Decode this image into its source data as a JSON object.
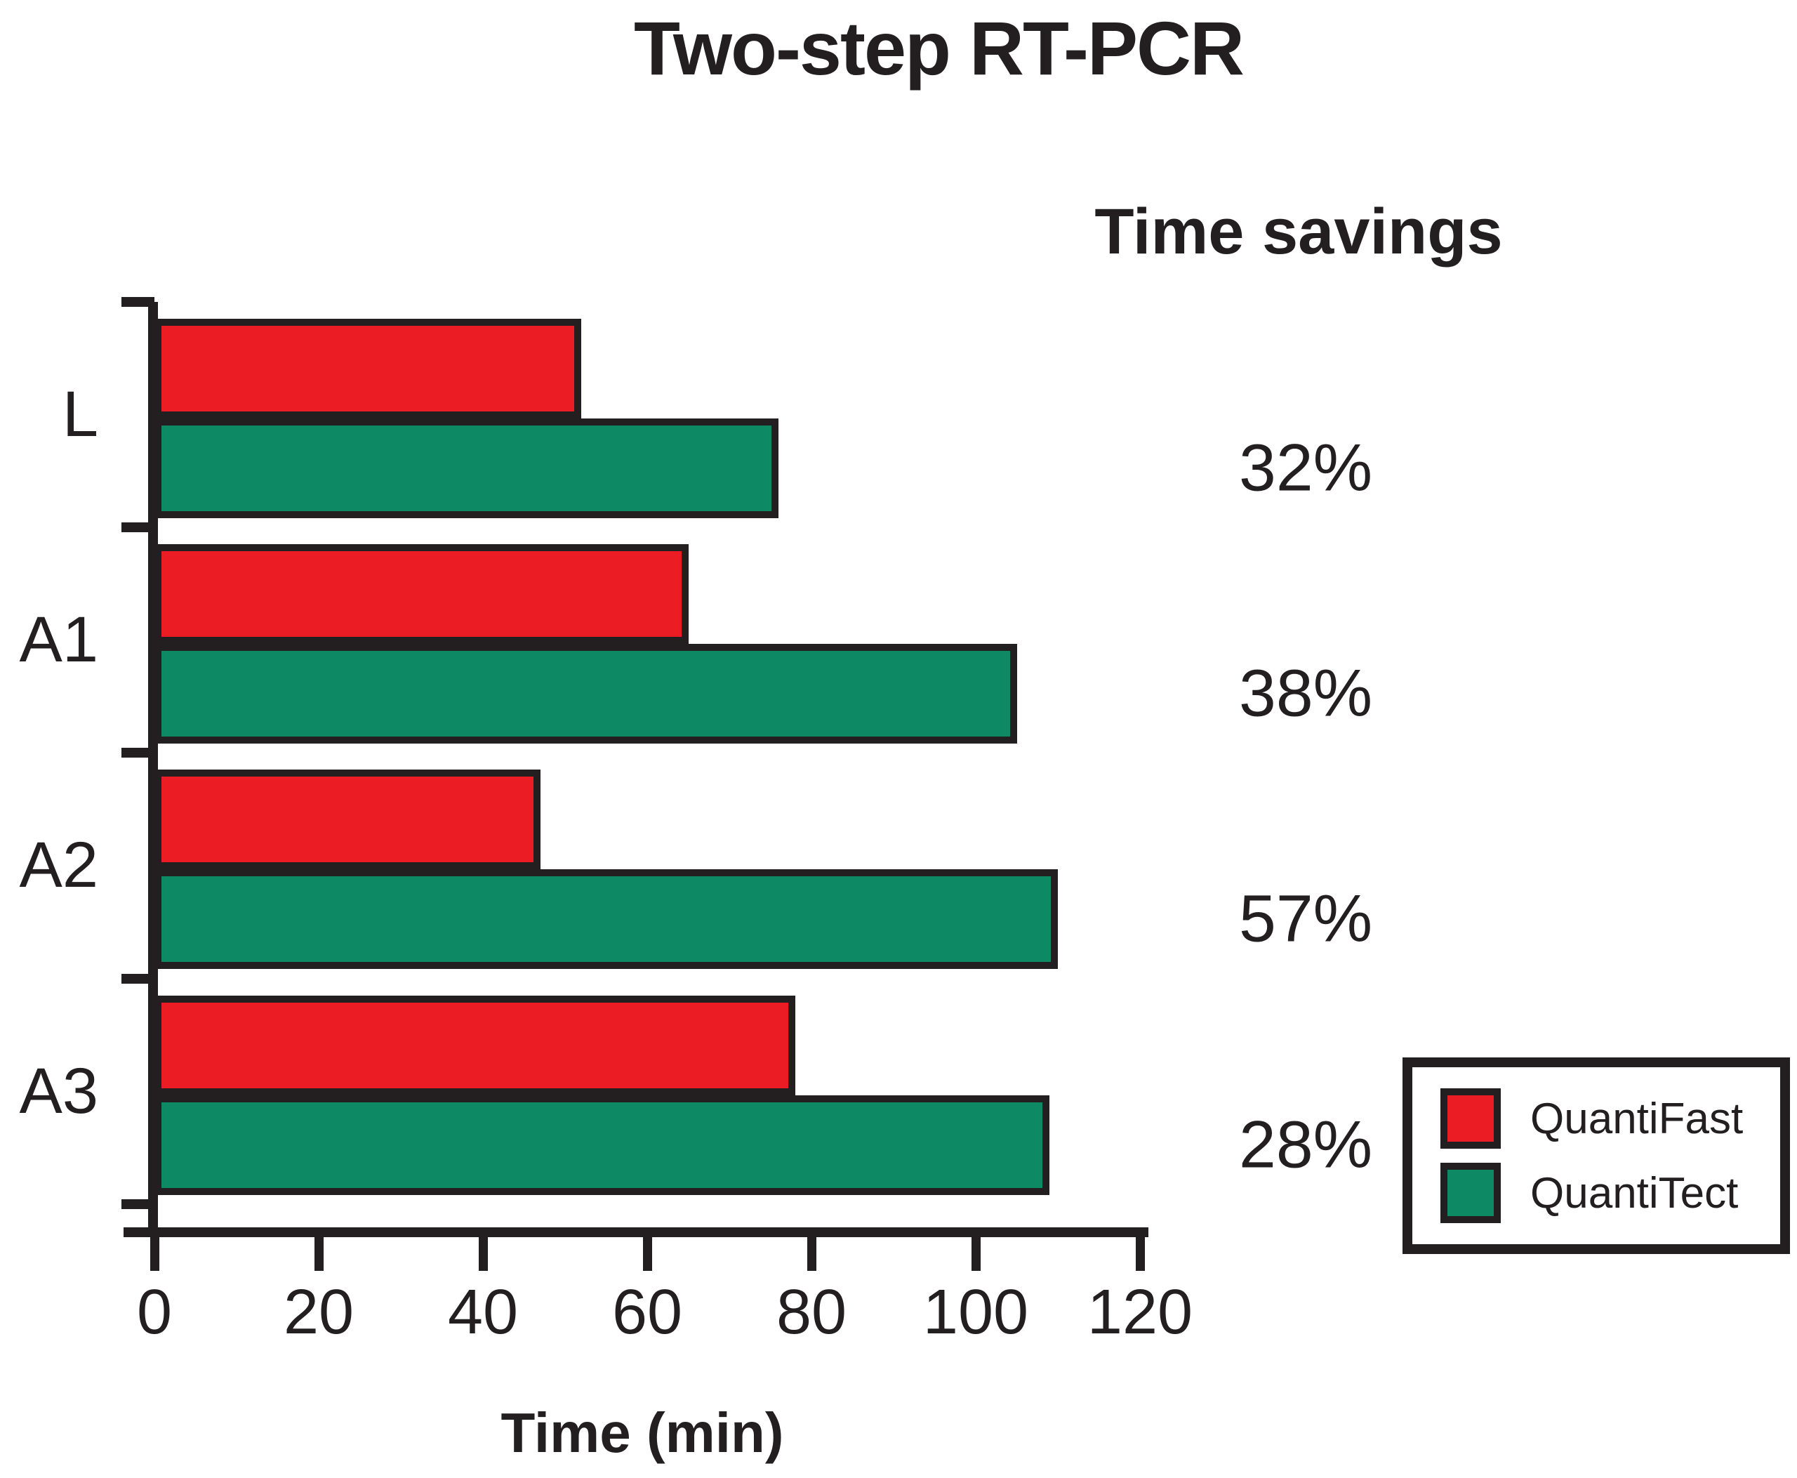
{
  "title": "Two-step RT-PCR",
  "savings": {
    "header": "Time savings",
    "values": [
      "32%",
      "38%",
      "57%",
      "28%"
    ]
  },
  "legend": {
    "items": [
      {
        "label": "QuantiFast",
        "color": "#ec1c24"
      },
      {
        "label": "QuantiTect",
        "color": "#0d8a63"
      }
    ]
  },
  "colors": {
    "quantifast_red": "#ec1c24",
    "quantitect_green": "#0d8a63",
    "outline_black": "#231f20"
  },
  "chart_data": {
    "type": "bar",
    "orientation": "horizontal",
    "title": "Two-step RT-PCR",
    "categories": [
      "L",
      "A1",
      "A2",
      "A3"
    ],
    "series": [
      {
        "name": "QuantiFast",
        "color": "#ec1c24",
        "values": [
          52,
          65,
          47,
          78
        ]
      },
      {
        "name": "QuantiTect",
        "color": "#0d8a63",
        "values": [
          76,
          105,
          110,
          109
        ]
      }
    ],
    "time_savings_percent": [
      "32%",
      "38%",
      "57%",
      "28%"
    ],
    "xlabel": "Time (min)",
    "x_ticks": [
      0,
      20,
      40,
      60,
      80,
      100,
      120
    ],
    "xlim": [
      0,
      120
    ],
    "grid": false,
    "legend_position": "lower right"
  }
}
